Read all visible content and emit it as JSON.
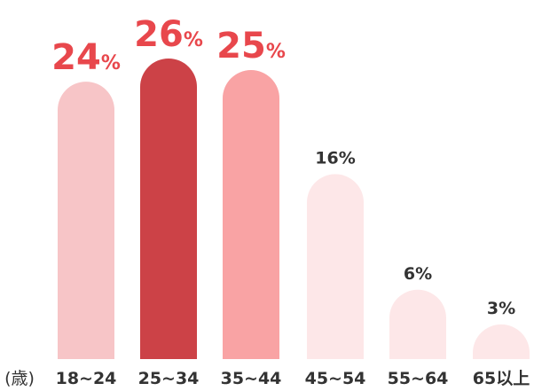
{
  "chart_data": {
    "type": "bar",
    "x_label": "(歳)",
    "categories": [
      "18~24",
      "25~34",
      "35~44",
      "45~54",
      "55~64",
      "65以上"
    ],
    "values": [
      24,
      26,
      25,
      16,
      6,
      3
    ],
    "value_labels": [
      "24%",
      "26%",
      "25%",
      "16%",
      "6%",
      "3%"
    ],
    "colors": [
      "#f7c5c7",
      "#cc4247",
      "#f9a3a4",
      "#fde7e8",
      "#fde7e8",
      "#fde7e8"
    ],
    "label_colors": [
      "#e8474c",
      "#e8474c",
      "#e8474c",
      "#333333",
      "#333333",
      "#333333"
    ],
    "ylim": [
      0,
      26
    ]
  }
}
